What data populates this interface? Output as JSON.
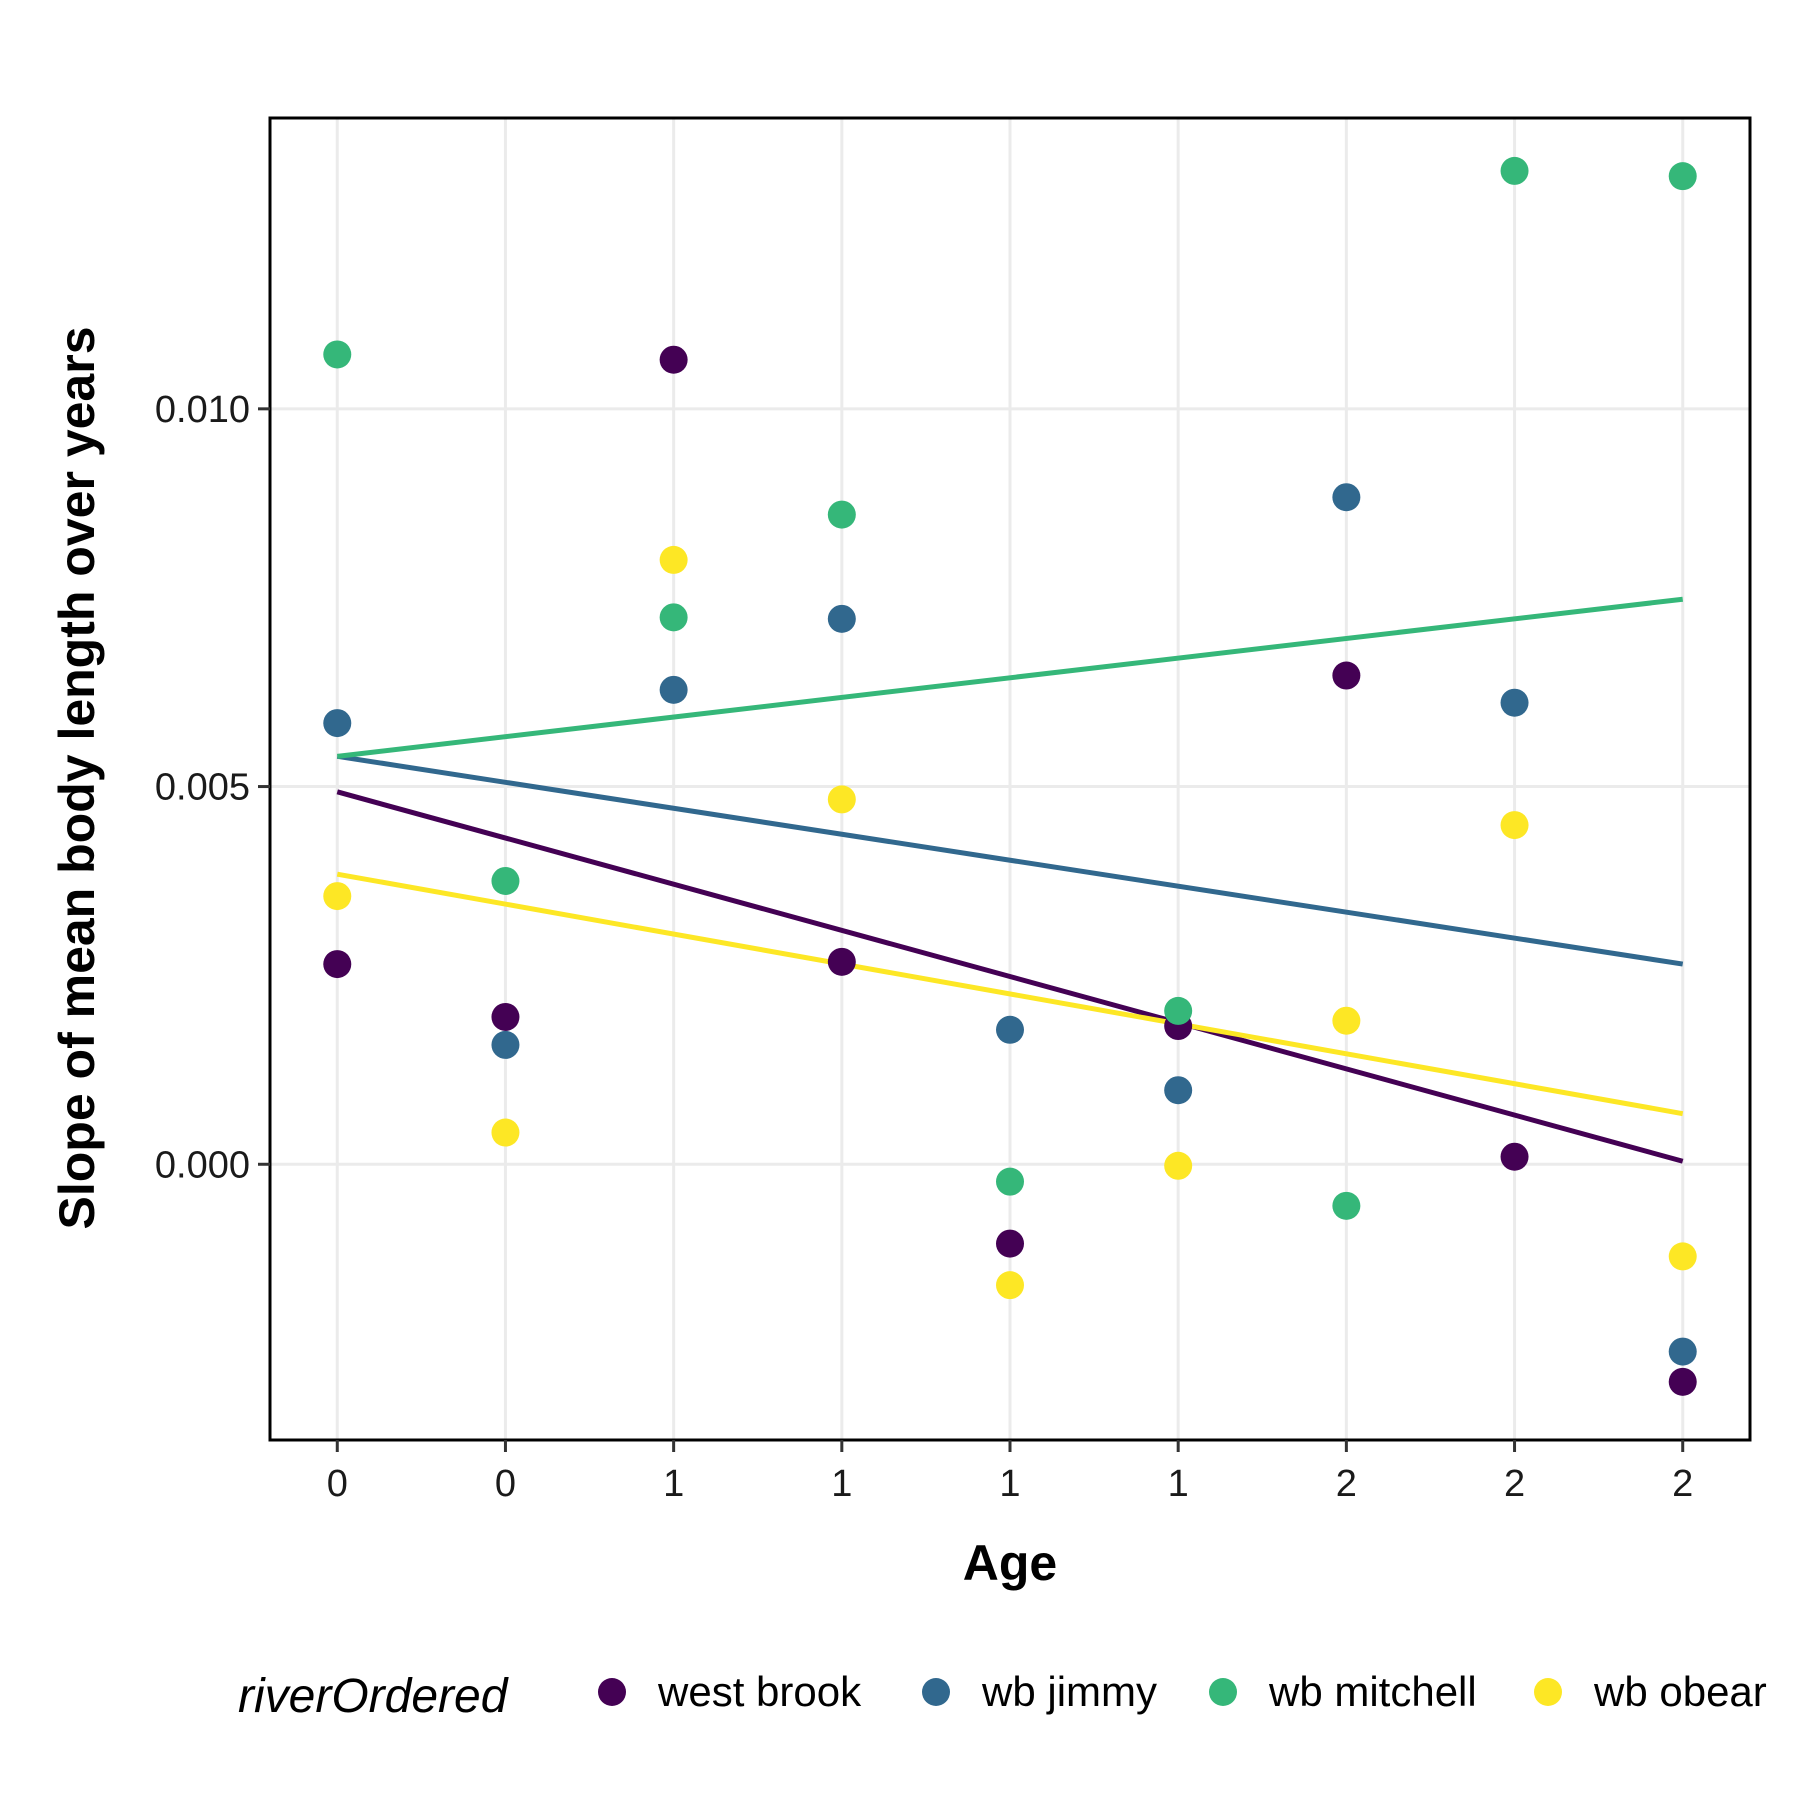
{
  "chart_data": {
    "type": "scatter",
    "xlabel": "Age",
    "ylabel": "Slope of mean body length over years",
    "x_positions": [
      1,
      2,
      3,
      4,
      5,
      6,
      7,
      8,
      9
    ],
    "x_tick_labels": [
      "0",
      "0",
      "1",
      "1",
      "1",
      "1",
      "2",
      "2",
      "2"
    ],
    "xlim": [
      0.6,
      9.4
    ],
    "ylim": [
      -0.00365,
      0.01385
    ],
    "y_ticks": [
      0.0,
      0.005,
      0.01
    ],
    "y_tick_labels": [
      "0.000",
      "0.005",
      "0.010"
    ],
    "grid": true,
    "legend": {
      "title": "riverOrdered",
      "position": "bottom"
    },
    "series": [
      {
        "name": "west brook",
        "color": "#440154",
        "points": [
          [
            1,
            0.00265
          ],
          [
            2,
            0.00195
          ],
          [
            3,
            0.01065
          ],
          [
            4,
            0.00268
          ],
          [
            5,
            -0.00105
          ],
          [
            6,
            0.00183
          ],
          [
            7,
            0.00647
          ],
          [
            8,
            0.0001
          ],
          [
            9,
            -0.00288
          ]
        ],
        "trend": [
          [
            1,
            0.00493
          ],
          [
            9,
            4e-05
          ]
        ]
      },
      {
        "name": "wb jimmy",
        "color": "#31688e",
        "points": [
          [
            1,
            0.00584
          ],
          [
            2,
            0.00158
          ],
          [
            3,
            0.00628
          ],
          [
            4,
            0.00722
          ],
          [
            5,
            0.00178
          ],
          [
            6,
            0.00098
          ],
          [
            7,
            0.00883
          ],
          [
            8,
            0.00611
          ],
          [
            9,
            -0.00248
          ]
        ],
        "trend": [
          [
            1,
            0.0054
          ],
          [
            9,
            0.00265
          ]
        ]
      },
      {
        "name": "wb mitchell",
        "color": "#35b779",
        "points": [
          [
            1,
            0.01072
          ],
          [
            2,
            0.00375
          ],
          [
            3,
            0.00724
          ],
          [
            4,
            0.0086
          ],
          [
            5,
            -0.00023
          ],
          [
            6,
            0.00203
          ],
          [
            7,
            -0.00055
          ],
          [
            8,
            0.01315
          ],
          [
            9,
            0.01308
          ]
        ],
        "trend": [
          [
            1,
            0.0054
          ],
          [
            9,
            0.00748
          ]
        ]
      },
      {
        "name": "wb obear",
        "color": "#fde725",
        "points": [
          [
            1,
            0.00355
          ],
          [
            2,
            0.00042
          ],
          [
            3,
            0.008
          ],
          [
            4,
            0.00483
          ],
          [
            5,
            -0.0016
          ],
          [
            6,
            -2e-05
          ],
          [
            7,
            0.0019
          ],
          [
            8,
            0.00449
          ],
          [
            9,
            -0.00122
          ]
        ],
        "trend": [
          [
            1,
            0.00384
          ],
          [
            9,
            0.00067
          ]
        ]
      }
    ]
  }
}
